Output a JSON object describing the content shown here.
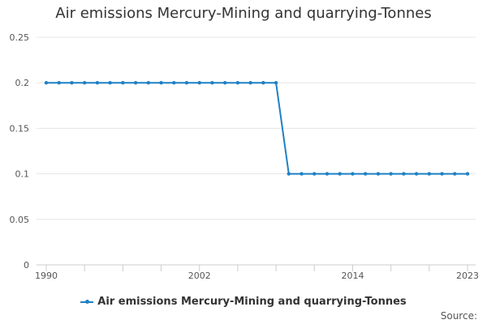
{
  "chart_data": {
    "type": "line",
    "title": "Air emissions Mercury-Mining and quarrying-Tonnes",
    "xlabel": "",
    "ylabel": "",
    "x": [
      1990,
      1991,
      1992,
      1993,
      1994,
      1995,
      1996,
      1997,
      1998,
      1999,
      2000,
      2001,
      2002,
      2003,
      2004,
      2005,
      2006,
      2007,
      2008,
      2009,
      2010,
      2011,
      2012,
      2013,
      2014,
      2015,
      2016,
      2017,
      2018,
      2019,
      2020,
      2021,
      2022,
      2023
    ],
    "series": [
      {
        "name": "Air emissions Mercury-Mining and quarrying-Tonnes",
        "values": [
          0.2,
          0.2,
          0.2,
          0.2,
          0.2,
          0.2,
          0.2,
          0.2,
          0.2,
          0.2,
          0.2,
          0.2,
          0.2,
          0.2,
          0.2,
          0.2,
          0.2,
          0.2,
          0.2,
          0.1,
          0.1,
          0.1,
          0.1,
          0.1,
          0.1,
          0.1,
          0.1,
          0.1,
          0.1,
          0.1,
          0.1,
          0.1,
          0.1,
          0.1
        ]
      }
    ],
    "xlim": [
      1990,
      2023
    ],
    "ylim": [
      0,
      0.25
    ],
    "y_ticks": [
      "0",
      "0.05",
      "0.1",
      "0.15",
      "0.2",
      "0.25"
    ],
    "x_ticks": [
      "1990",
      "2002",
      "2014",
      "2023"
    ],
    "grid": true,
    "legend_position": "bottom",
    "colors": {
      "series": "#1f80c4",
      "grid": "#e6e6e6",
      "axis": "#cccccc"
    }
  },
  "footer": {
    "source_label": "Source:"
  }
}
